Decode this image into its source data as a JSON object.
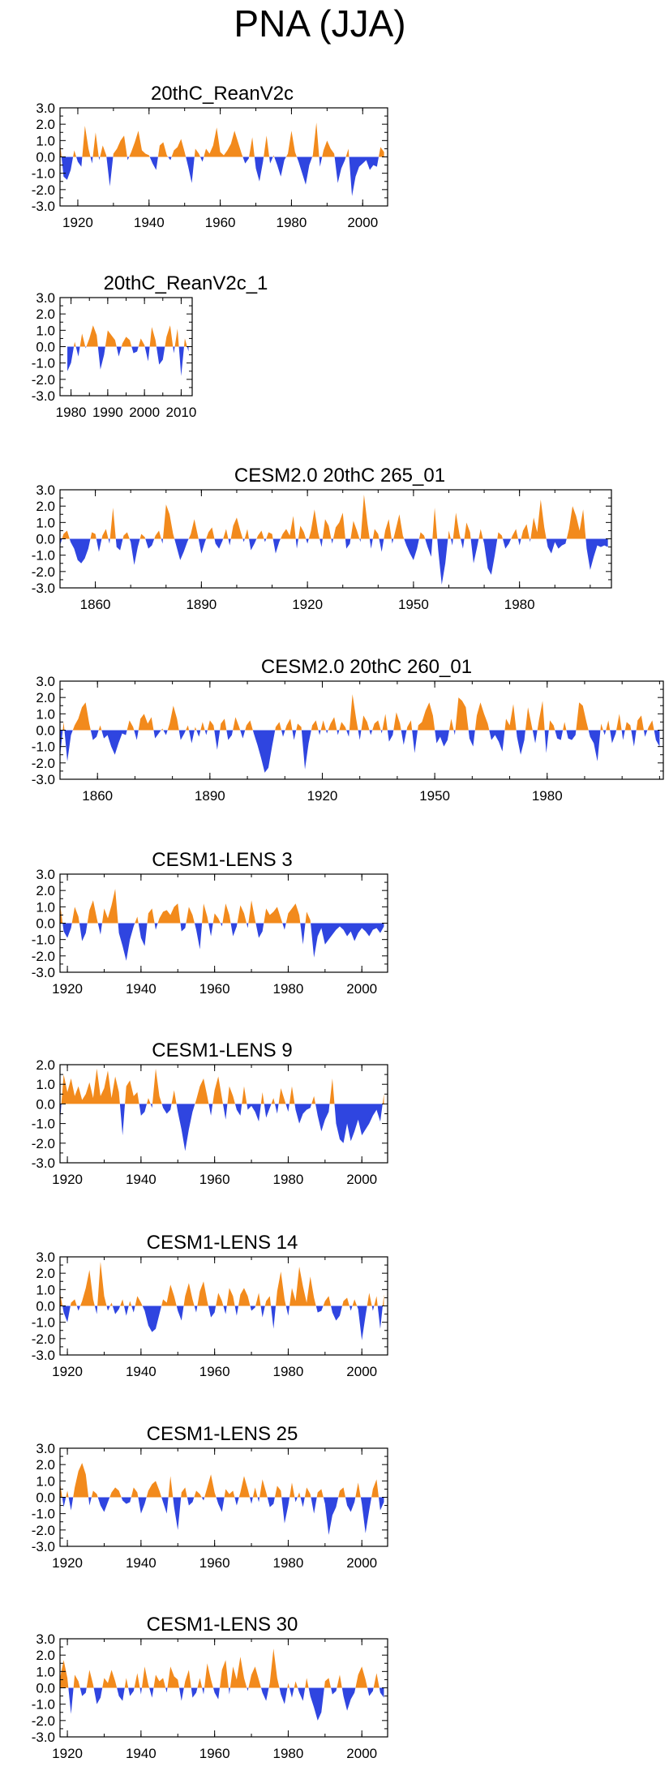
{
  "title": "PNA (JJA)",
  "colors": {
    "positive": "#f28a1c",
    "negative": "#2f45e0",
    "axis": "#000000"
  },
  "chart_data": [
    {
      "type": "area",
      "title": "20thC_ReanV2c",
      "xlim": [
        1915,
        2007
      ],
      "ylim": [
        -3,
        3
      ],
      "xticks": [
        "1920",
        "1940",
        "1960",
        "1980",
        "2000"
      ],
      "yticks": [
        "3.0",
        "2.0",
        "1.0",
        "0.0",
        "-1.0",
        "-2.0",
        "-3.0"
      ],
      "years": [
        1915,
        2006
      ],
      "values": [
        0.9,
        -1.2,
        -1.4,
        -0.8,
        0.4,
        -0.3,
        -0.6,
        1.9,
        0.5,
        -0.4,
        1.5,
        -0.2,
        0.7,
        0.1,
        -1.8,
        0.2,
        0.5,
        1.0,
        1.3,
        -0.2,
        0.3,
        0.9,
        1.6,
        0.4,
        0.2,
        0.1,
        -0.4,
        -0.8,
        0.7,
        0.9,
        0.1,
        -0.2,
        0.4,
        0.6,
        1.1,
        0.3,
        -0.6,
        -1.6,
        0.5,
        0.2,
        -0.3,
        0.5,
        0.2,
        0.7,
        1.8,
        0.3,
        0.1,
        0.4,
        0.8,
        1.6,
        0.9,
        0.2,
        -0.4,
        -0.1,
        1.2,
        -0.7,
        -1.5,
        -0.3,
        1.3,
        -0.4,
        0.1,
        -0.5,
        -1.2,
        -0.2,
        0.2,
        1.6,
        0.3,
        -0.3,
        -1.0,
        -1.7,
        -0.5,
        0.1,
        2.1,
        -0.6,
        0.4,
        1.0,
        0.5,
        0.2,
        -1.6,
        -0.7,
        -0.2,
        0.5,
        -2.4,
        -1.2,
        -0.6,
        -0.4,
        -0.2,
        -0.8,
        -0.5,
        -0.6,
        0.6,
        0.3
      ]
    },
    {
      "type": "area",
      "title": "20thC_ReanV2c_1",
      "xlim": [
        1977,
        2013
      ],
      "ylim": [
        -3,
        3
      ],
      "xticks": [
        "1980",
        "1990",
        "2000",
        "2010"
      ],
      "yticks": [
        "3.0",
        "2.0",
        "1.0",
        "0.0",
        "-1.0",
        "-2.0",
        "-3.0"
      ],
      "years": [
        1979,
        2012
      ],
      "values": [
        -1.5,
        -1.0,
        0.3,
        -0.6,
        0.8,
        -0.1,
        0.5,
        1.3,
        0.7,
        -1.4,
        -0.5,
        1.0,
        0.7,
        0.4,
        -0.6,
        0.2,
        0.6,
        0.4,
        -0.4,
        -0.3,
        0.5,
        0.1,
        -0.9,
        1.2,
        0.4,
        -1.1,
        -0.8,
        0.6,
        1.3,
        -0.4,
        1.1,
        -1.8,
        0.5,
        -0.3
      ]
    },
    {
      "type": "area",
      "title": "CESM2.0 20thC 265_01",
      "xlim": [
        1850,
        2006
      ],
      "ylim": [
        -3,
        3
      ],
      "xticks": [
        "1860",
        "1890",
        "1920",
        "1950",
        "1980"
      ],
      "yticks": [
        "3.0",
        "2.0",
        "1.0",
        "0.0",
        "-1.0",
        "-2.0",
        "-3.0"
      ],
      "years": [
        1850,
        2005
      ],
      "values": [
        -0.4,
        0.3,
        0.5,
        -0.2,
        -0.6,
        -1.3,
        -1.5,
        -1.2,
        -0.6,
        0.4,
        0.3,
        -0.8,
        0.2,
        0.6,
        -0.3,
        1.9,
        -0.5,
        -0.7,
        0.2,
        0.4,
        -0.2,
        -1.6,
        -0.5,
        0.3,
        0.1,
        -0.6,
        -0.4,
        0.2,
        0.5,
        -0.3,
        2.1,
        1.5,
        0.3,
        -0.5,
        -1.3,
        -0.8,
        -0.2,
        0.3,
        1.2,
        0.2,
        -0.9,
        -0.2,
        0.4,
        0.7,
        -0.3,
        -0.6,
        -0.1,
        0.6,
        -0.4,
        0.8,
        1.3,
        0.5,
        -0.2,
        0.6,
        -0.7,
        -0.3,
        0.2,
        0.5,
        -0.2,
        0.4,
        0.3,
        -0.9,
        -0.2,
        0.3,
        0.6,
        0.2,
        1.4,
        -0.6,
        0.8,
        0.4,
        -0.3,
        0.5,
        1.8,
        0.4,
        -0.5,
        1.2,
        0.8,
        -0.3,
        0.7,
        1.0,
        1.6,
        -0.6,
        -0.3,
        1.1,
        0.5,
        -0.2,
        2.7,
        0.9,
        -0.6,
        0.6,
        0.3,
        -0.8,
        0.5,
        1.2,
        -0.3,
        0.6,
        1.5,
        0.2,
        -0.4,
        -0.9,
        -1.3,
        -0.6,
        0.4,
        0.2,
        -0.5,
        -1.1,
        1.9,
        -0.7,
        -2.8,
        -1.5,
        0.5,
        -0.4,
        1.6,
        0.3,
        -0.6,
        1.0,
        0.4,
        -1.5,
        -0.5,
        0.6,
        -0.3,
        -1.8,
        -2.2,
        -1.0,
        0.4,
        0.2,
        -0.6,
        -0.3,
        0.2,
        0.6,
        -0.4,
        0.5,
        0.9,
        -0.2,
        1.3,
        0.4,
        2.4,
        0.7,
        -0.5,
        -0.9,
        -0.2,
        -0.6,
        -0.4,
        -0.3,
        0.6,
        2.0,
        1.4,
        0.5,
        1.8,
        -0.6,
        -1.9,
        -1.1,
        -0.4,
        -0.5,
        -0.4,
        -0.5
      ]
    },
    {
      "type": "area",
      "title": "CESM2.0 20thC 260_01",
      "xlim": [
        1850,
        2011
      ],
      "ylim": [
        -3,
        3
      ],
      "xticks": [
        "1860",
        "1890",
        "1920",
        "1950",
        "1980"
      ],
      "yticks": [
        "3.0",
        "2.0",
        "1.0",
        "0.0",
        "-1.0",
        "-2.0",
        "-3.0"
      ],
      "years": [
        1850,
        2010
      ],
      "values": [
        -1.6,
        0.5,
        -1.9,
        -0.3,
        0.3,
        0.7,
        1.4,
        1.7,
        0.4,
        -0.6,
        -0.4,
        0.3,
        -0.5,
        -0.3,
        -1.0,
        -1.5,
        -0.8,
        -0.2,
        -0.3,
        0.6,
        0.2,
        -0.6,
        0.7,
        1.0,
        0.4,
        0.8,
        -0.5,
        -0.2,
        0.1,
        -0.3,
        0.4,
        1.5,
        0.7,
        -0.6,
        -0.2,
        0.3,
        -0.8,
        0.2,
        -0.4,
        0.5,
        -0.3,
        0.6,
        0.3,
        -1.2,
        0.4,
        0.7,
        -0.6,
        -0.3,
        0.8,
        0.2,
        -0.5,
        0.3,
        0.6,
        -0.2,
        -0.9,
        -1.7,
        -2.6,
        -2.3,
        -1.0,
        0.2,
        0.5,
        -0.4,
        0.3,
        0.7,
        -0.6,
        0.4,
        0.2,
        -2.4,
        -0.8,
        0.3,
        0.6,
        -0.3,
        0.6,
        -0.2,
        0.4,
        0.8,
        -0.3,
        0.5,
        0.2,
        -0.4,
        2.2,
        0.7,
        -0.6,
        0.9,
        0.5,
        -0.3,
        0.4,
        0.6,
        -0.2,
        1.0,
        -0.7,
        -0.3,
        1.1,
        0.4,
        -0.9,
        0.2,
        0.6,
        -1.4,
        0.3,
        0.5,
        1.2,
        1.7,
        0.9,
        -0.8,
        -0.4,
        -1.0,
        -0.6,
        0.7,
        -0.3,
        2.0,
        1.8,
        1.4,
        -0.5,
        -1.0,
        0.9,
        1.7,
        1.0,
        0.4,
        -0.6,
        -0.3,
        -0.7,
        -1.3,
        0.7,
        0.3,
        1.6,
        -0.4,
        -1.5,
        -0.6,
        1.4,
        0.3,
        -0.8,
        0.6,
        1.8,
        -1.4,
        0.6,
        0.3,
        -0.5,
        -0.6,
        0.5,
        -0.5,
        -0.6,
        -0.3,
        1.7,
        1.5,
        0.5,
        -0.4,
        -0.8,
        -1.9,
        0.4,
        -0.3,
        0.6,
        -0.8,
        -0.2,
        1.0,
        -0.6,
        0.5,
        0.3,
        -1.0,
        0.6,
        0.9,
        -0.4,
        0.2,
        0.6,
        -0.6,
        -1.0
      ]
    },
    {
      "type": "area",
      "title": "CESM1-LENS 3",
      "xlim": [
        1918,
        2007
      ],
      "ylim": [
        -3,
        3
      ],
      "xticks": [
        "1920",
        "1940",
        "1960",
        "1980",
        "2000"
      ],
      "yticks": [
        "3.0",
        "2.0",
        "1.0",
        "0.0",
        "-1.0",
        "-2.0",
        "-3.0"
      ],
      "years": [
        1918,
        2006
      ],
      "values": [
        1.2,
        -0.5,
        -0.9,
        -0.3,
        1.0,
        0.4,
        -1.1,
        -0.6,
        0.8,
        1.4,
        0.3,
        -0.7,
        0.9,
        0.3,
        1.1,
        2.1,
        -0.6,
        -1.4,
        -2.3,
        -1.0,
        -0.2,
        0.4,
        -0.9,
        -1.4,
        0.6,
        0.9,
        -0.4,
        0.3,
        0.7,
        0.8,
        0.5,
        1.0,
        1.2,
        -0.5,
        -0.3,
        1.0,
        0.5,
        -0.4,
        -1.6,
        1.2,
        0.4,
        -0.8,
        0.6,
        0.3,
        -0.2,
        1.2,
        0.5,
        -0.8,
        -0.2,
        1.1,
        0.6,
        -0.3,
        1.4,
        0.2,
        -0.9,
        -0.5,
        0.9,
        0.5,
        0.7,
        1.0,
        0.3,
        -0.4,
        0.6,
        0.9,
        1.2,
        0.5,
        -1.3,
        0.7,
        0.2,
        -2.1,
        -0.8,
        -0.3,
        -1.3,
        -1.0,
        -0.7,
        -0.4,
        -0.2,
        -0.4,
        -0.8,
        -0.5,
        -1.1,
        -0.6,
        -0.3,
        -0.5,
        -0.8,
        -0.4,
        -0.3,
        -0.6,
        -0.2
      ]
    },
    {
      "type": "area",
      "title": "CESM1-LENS 9",
      "xlim": [
        1918,
        2007
      ],
      "ylim": [
        -3,
        2
      ],
      "xticks": [
        "1920",
        "1940",
        "1960",
        "1980",
        "2000"
      ],
      "yticks": [
        "2.0",
        "1.0",
        "0.0",
        "-1.0",
        "-2.0",
        "-3.0"
      ],
      "years": [
        1918,
        2006
      ],
      "values": [
        -0.9,
        1.5,
        0.6,
        1.3,
        0.4,
        0.9,
        0.2,
        0.5,
        1.1,
        0.3,
        1.8,
        0.4,
        0.8,
        1.7,
        0.3,
        1.4,
        0.6,
        -1.6,
        0.9,
        1.2,
        0.4,
        0.6,
        -0.6,
        -0.4,
        0.3,
        -0.2,
        1.8,
        0.4,
        -0.2,
        -0.5,
        -0.3,
        0.7,
        -0.4,
        -1.3,
        -2.4,
        -1.3,
        -0.4,
        0.2,
        0.9,
        1.3,
        0.4,
        -0.6,
        0.7,
        1.4,
        0.3,
        -0.8,
        0.9,
        0.4,
        -0.3,
        -0.6,
        0.9,
        -0.3,
        -0.1,
        -0.4,
        -0.9,
        0.6,
        -0.7,
        -0.2,
        0.3,
        -0.5,
        0.8,
        0.2,
        -0.4,
        0.9,
        -0.3,
        -1.0,
        -0.5,
        -0.3,
        -0.2,
        0.4,
        -0.6,
        -1.4,
        -0.8,
        -0.4,
        1.3,
        -1.0,
        -1.8,
        -2.0,
        -1.0,
        -1.9,
        -1.4,
        -0.8,
        -1.6,
        -1.3,
        -1.0,
        -0.6,
        -0.3,
        -0.9,
        0.5
      ]
    },
    {
      "type": "area",
      "title": "CESM1-LENS 14",
      "xlim": [
        1918,
        2007
      ],
      "ylim": [
        -3,
        3
      ],
      "xticks": [
        "1920",
        "1940",
        "1960",
        "1980",
        "2000"
      ],
      "yticks": [
        "3.0",
        "2.0",
        "1.0",
        "0.0",
        "-1.0",
        "-2.0",
        "-3.0"
      ],
      "years": [
        1918,
        2006
      ],
      "values": [
        0.8,
        -0.4,
        -1.0,
        0.2,
        0.4,
        -0.3,
        0.3,
        1.1,
        2.2,
        0.4,
        -0.5,
        2.7,
        0.6,
        -0.3,
        0.2,
        -0.5,
        -0.2,
        0.4,
        -0.6,
        0.3,
        -0.4,
        0.6,
        0.2,
        -0.3,
        -1.2,
        -1.6,
        -1.4,
        -0.5,
        0.4,
        0.2,
        1.3,
        0.6,
        -0.3,
        -0.9,
        0.6,
        1.4,
        0.4,
        -0.4,
        0.9,
        1.5,
        0.3,
        -0.7,
        -0.4,
        0.8,
        0.3,
        -0.5,
        1.1,
        0.6,
        -0.6,
        0.7,
        1.1,
        0.6,
        -0.3,
        -0.1,
        0.8,
        -0.7,
        0.3,
        0.6,
        -1.4,
        0.9,
        2.1,
        0.4,
        -0.6,
        1.1,
        0.3,
        2.4,
        1.2,
        0.2,
        1.8,
        0.5,
        -0.4,
        -0.3,
        0.3,
        0.6,
        -0.4,
        -0.9,
        -0.6,
        0.3,
        0.5,
        -0.3,
        0.4,
        -0.2,
        -2.1,
        -0.6,
        0.8,
        -0.3,
        0.6,
        -1.4,
        0.7
      ]
    },
    {
      "type": "area",
      "title": "CESM1-LENS 25",
      "xlim": [
        1918,
        2007
      ],
      "ylim": [
        -3,
        3
      ],
      "xticks": [
        "1920",
        "1940",
        "1960",
        "1980",
        "2000"
      ],
      "yticks": [
        "3.0",
        "2.0",
        "1.0",
        "0.0",
        "-1.0",
        "-2.0",
        "-3.0"
      ],
      "years": [
        1918,
        2006
      ],
      "values": [
        0.9,
        -0.6,
        0.4,
        -0.8,
        0.6,
        1.6,
        2.1,
        1.4,
        -0.5,
        0.4,
        0.2,
        -0.5,
        -0.9,
        -0.3,
        0.3,
        0.6,
        0.4,
        -0.2,
        -0.4,
        -0.3,
        0.6,
        0.3,
        -1.0,
        -0.4,
        0.4,
        0.8,
        1.0,
        0.4,
        -0.3,
        -1.0,
        1.3,
        -0.6,
        -2.0,
        0.3,
        0.6,
        -0.5,
        -0.3,
        0.4,
        0.2,
        -0.2,
        0.6,
        1.4,
        0.3,
        -0.4,
        -0.9,
        0.5,
        0.2,
        0.4,
        -0.5,
        0.3,
        1.3,
        0.5,
        -0.4,
        0.6,
        -0.3,
        1.1,
        0.3,
        -0.6,
        -0.4,
        0.7,
        0.4,
        -1.6,
        -0.5,
        0.9,
        -0.3,
        0.3,
        -0.6,
        0.6,
        0.2,
        -1.0,
        0.3,
        0.5,
        -0.4,
        -2.3,
        -1.1,
        -0.6,
        0.4,
        0.6,
        -0.5,
        -0.9,
        -0.3,
        0.9,
        -0.4,
        -2.2,
        -0.8,
        0.5,
        1.1,
        -0.8,
        -0.3
      ]
    },
    {
      "type": "area",
      "title": "CESM1-LENS 30",
      "xlim": [
        1918,
        2007
      ],
      "ylim": [
        -3,
        3
      ],
      "xticks": [
        "1920",
        "1940",
        "1960",
        "1980",
        "2000"
      ],
      "yticks": [
        "3.0",
        "2.0",
        "1.0",
        "0.0",
        "-1.0",
        "-2.0",
        "-3.0"
      ],
      "years": [
        1918,
        2006
      ],
      "values": [
        0.6,
        1.7,
        0.6,
        -1.6,
        0.8,
        0.4,
        -0.5,
        -0.3,
        1.1,
        0.2,
        -1.0,
        -0.6,
        0.6,
        0.3,
        1.1,
        0.4,
        -0.5,
        -0.8,
        0.6,
        -0.5,
        -0.2,
        0.9,
        -0.4,
        1.3,
        0.2,
        -0.6,
        0.8,
        0.4,
        0.6,
        -0.3,
        1.3,
        0.7,
        0.5,
        -0.8,
        0.4,
        1.1,
        -0.6,
        -0.3,
        0.6,
        -0.4,
        1.5,
        0.5,
        -0.3,
        -0.7,
        1.1,
        1.7,
        -0.4,
        1.3,
        0.5,
        1.9,
        0.6,
        -0.2,
        0.8,
        1.3,
        0.5,
        -0.3,
        -0.8,
        0.3,
        2.4,
        0.6,
        -0.4,
        -1.0,
        0.3,
        -0.6,
        0.4,
        -0.3,
        -0.8,
        0.6,
        -0.5,
        -1.2,
        -2.0,
        -1.5,
        0.4,
        0.6,
        -0.4,
        -0.2,
        0.8,
        -0.5,
        -1.4,
        -0.7,
        -0.3,
        0.8,
        1.3,
        0.5,
        -0.5,
        -0.2,
        0.9,
        -0.3,
        -0.6
      ]
    }
  ]
}
